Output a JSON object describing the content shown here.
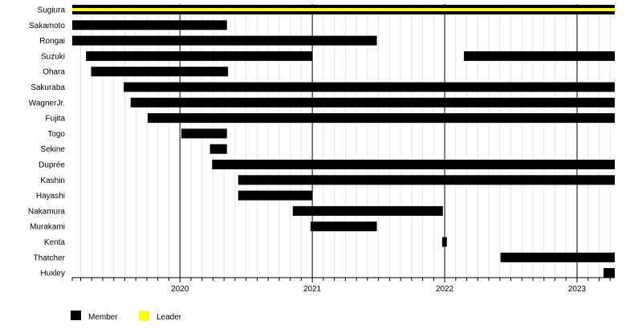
{
  "chart_data": {
    "type": "timeline",
    "xlim": [
      "2019-03-10",
      "2023-04-15"
    ],
    "x_ticks": [
      "2020",
      "2021",
      "2022",
      "2023"
    ],
    "grid": "monthly vertical lines, yearly major lines",
    "legend_placement": "bottom-left",
    "legend": [
      {
        "label": "Member",
        "color": "#000000"
      },
      {
        "label": "Leader",
        "color": "#ffff00"
      }
    ],
    "rows": [
      {
        "name": "Sugiura",
        "periods": [
          {
            "role": "Member",
            "start": "2019-03-10",
            "end": "2023-04-15"
          },
          {
            "role": "Leader",
            "start": "2019-03-10",
            "end": "2023-04-15"
          }
        ]
      },
      {
        "name": "Sakamoto",
        "periods": [
          {
            "role": "Member",
            "start": "2019-03-10",
            "end": "2020-05-10"
          }
        ]
      },
      {
        "name": "Rongai",
        "periods": [
          {
            "role": "Member",
            "start": "2019-03-10",
            "end": "2021-06-28"
          }
        ]
      },
      {
        "name": "Suzuki",
        "periods": [
          {
            "role": "Member",
            "start": "2019-04-17",
            "end": "2021-01-01"
          },
          {
            "role": "Member",
            "start": "2022-02-23",
            "end": "2023-04-15"
          }
        ]
      },
      {
        "name": "Ohara",
        "periods": [
          {
            "role": "Member",
            "start": "2019-05-01",
            "end": "2020-05-13"
          }
        ]
      },
      {
        "name": "Sakuraba",
        "periods": [
          {
            "role": "Member",
            "start": "2019-07-30",
            "end": "2023-04-15"
          }
        ]
      },
      {
        "name": "WagnerJr.",
        "periods": [
          {
            "role": "Member",
            "start": "2019-08-18",
            "end": "2023-04-15"
          }
        ]
      },
      {
        "name": "Fujita",
        "periods": [
          {
            "role": "Member",
            "start": "2019-10-04",
            "end": "2023-04-15"
          }
        ]
      },
      {
        "name": "Togo",
        "periods": [
          {
            "role": "Member",
            "start": "2020-01-05",
            "end": "2020-05-10"
          }
        ]
      },
      {
        "name": "Sekine",
        "periods": [
          {
            "role": "Member",
            "start": "2020-03-24",
            "end": "2020-05-10"
          }
        ]
      },
      {
        "name": "Duprée",
        "periods": [
          {
            "role": "Member",
            "start": "2020-03-30",
            "end": "2023-04-15"
          }
        ]
      },
      {
        "name": "Kashin",
        "periods": [
          {
            "role": "Member",
            "start": "2020-06-10",
            "end": "2023-04-15"
          }
        ]
      },
      {
        "name": "Hayashi",
        "periods": [
          {
            "role": "Member",
            "start": "2020-06-10",
            "end": "2021-01-01"
          }
        ]
      },
      {
        "name": "Nakamura",
        "periods": [
          {
            "role": "Member",
            "start": "2020-11-08",
            "end": "2021-12-27"
          }
        ]
      },
      {
        "name": "Murakami",
        "periods": [
          {
            "role": "Member",
            "start": "2020-12-27",
            "end": "2021-06-28"
          }
        ]
      },
      {
        "name": "Kenta",
        "periods": [
          {
            "role": "Member",
            "start": "2021-12-25",
            "end": "2022-01-07"
          }
        ]
      },
      {
        "name": "Thatcher",
        "periods": [
          {
            "role": "Member",
            "start": "2022-06-04",
            "end": "2023-04-15"
          }
        ]
      },
      {
        "name": "Huxley",
        "periods": [
          {
            "role": "Member",
            "start": "2023-03-15",
            "end": "2023-04-15"
          }
        ]
      }
    ]
  }
}
